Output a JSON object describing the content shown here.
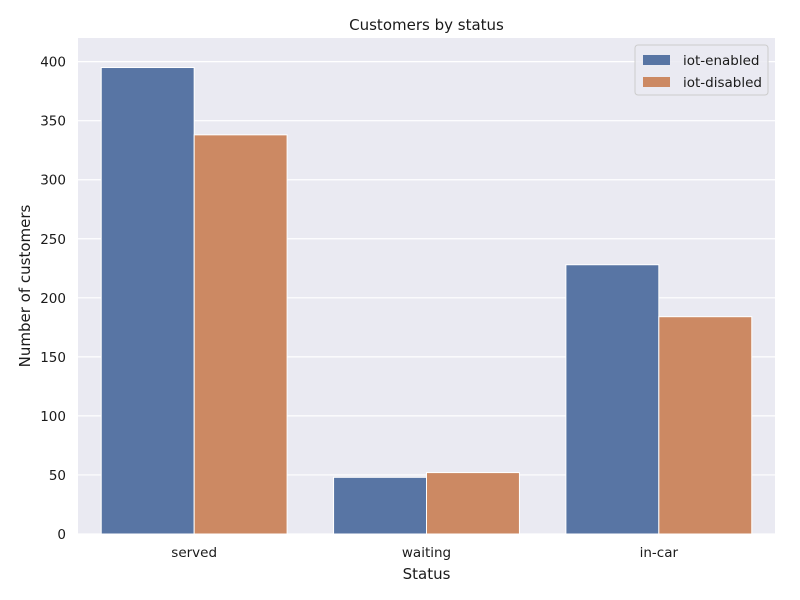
{
  "chart_data": {
    "type": "bar",
    "title": "Customers by status",
    "xlabel": "Status",
    "ylabel": "Number of customers",
    "categories": [
      "served",
      "waiting",
      "in-car"
    ],
    "series": [
      {
        "name": "iot-enabled",
        "values": [
          395,
          48,
          228
        ]
      },
      {
        "name": "iot-disabled",
        "values": [
          338,
          52,
          184
        ]
      }
    ],
    "ylim": [
      0,
      420
    ],
    "yticks": [
      0,
      50,
      100,
      150,
      200,
      250,
      300,
      350,
      400
    ],
    "grid": true,
    "legend": "top-right"
  },
  "colors": {
    "background": "#eaeaf2",
    "grid": "#ffffff",
    "iot-enabled": "#5875a4",
    "iot-disabled": "#cc8963"
  }
}
